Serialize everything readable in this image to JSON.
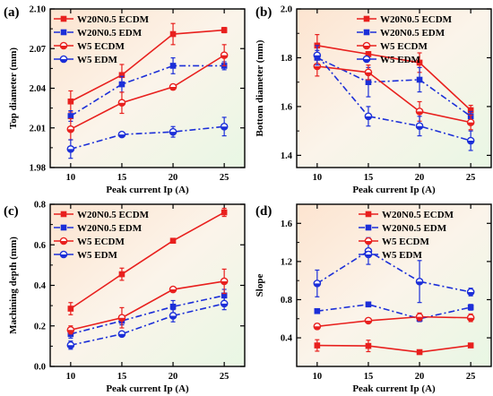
{
  "colors": {
    "red": "#e8201e",
    "blue": "#1c2fd8",
    "axis": "#000000",
    "bg_warm": "#fde4d0",
    "bg_cool": "#e8f7e4"
  },
  "chart_data": [
    {
      "type": "line",
      "panel": "(a)",
      "xlabel": "Peak current Ip (A)",
      "ylabel": "Top diameter (mm)",
      "x": [
        10,
        15,
        20,
        25
      ],
      "xticks": [
        "10",
        "15",
        "20",
        "25"
      ],
      "xlim": [
        8,
        27
      ],
      "ylim": [
        1.98,
        2.1
      ],
      "yticks": [
        "1.98",
        "2.01",
        "2.04",
        "2.07",
        "2.10"
      ],
      "legend_position": "top-left",
      "series": [
        {
          "name": "W20N0.5 ECDM",
          "values": [
            2.03,
            2.05,
            2.081,
            2.084
          ],
          "errors": [
            0.008,
            0.008,
            0.008,
            0.002
          ],
          "color": "red",
          "dash": "solid",
          "marker": "square"
        },
        {
          "name": "W20N0.5 EDM",
          "values": [
            2.019,
            2.043,
            2.057,
            2.057
          ],
          "errors": [
            0.004,
            0.006,
            0.006,
            0.003
          ],
          "color": "blue",
          "dash": "dashdot",
          "marker": "square"
        },
        {
          "name": "W5 ECDM",
          "values": [
            2.009,
            2.029,
            2.041,
            2.065
          ],
          "errors": [
            0.008,
            0.008,
            0.002,
            0.008
          ],
          "color": "red",
          "dash": "solid",
          "marker": "circle"
        },
        {
          "name": "W5 EDM",
          "values": [
            1.994,
            2.005,
            2.007,
            2.011
          ],
          "errors": [
            0.007,
            0.001,
            0.004,
            0.007
          ],
          "color": "blue",
          "dash": "dashdot",
          "marker": "circle"
        }
      ]
    },
    {
      "type": "line",
      "panel": "(b)",
      "xlabel": "Peak current Ip (A)",
      "ylabel": "Bottom diameter (mm)",
      "x": [
        10,
        15,
        20,
        25
      ],
      "xticks": [
        "10",
        "15",
        "20",
        "25"
      ],
      "xlim": [
        8,
        27
      ],
      "ylim": [
        1.35,
        2.0
      ],
      "yticks": [
        "1.4",
        "1.6",
        "1.8",
        "2.0"
      ],
      "legend_position": "top-right",
      "series": [
        {
          "name": "W20N0.5 ECDM",
          "values": [
            1.85,
            1.815,
            1.78,
            1.585
          ],
          "errors": [
            0.045,
            0.01,
            0.04,
            0.02
          ],
          "color": "red",
          "dash": "solid",
          "marker": "square"
        },
        {
          "name": "W20N0.5 EDM",
          "values": [
            1.8,
            1.7,
            1.71,
            1.56
          ],
          "errors": [
            0.03,
            0.06,
            0.05,
            0.02
          ],
          "color": "blue",
          "dash": "dashdot",
          "marker": "square"
        },
        {
          "name": "W5 ECDM",
          "values": [
            1.765,
            1.74,
            1.58,
            1.535
          ],
          "errors": [
            0.04,
            0.03,
            0.04,
            0.03
          ],
          "color": "red",
          "dash": "solid",
          "marker": "circle"
        },
        {
          "name": "W5 EDM",
          "values": [
            1.81,
            1.56,
            1.52,
            1.46
          ],
          "errors": [
            0.04,
            0.04,
            0.04,
            0.04
          ],
          "color": "blue",
          "dash": "dashdot",
          "marker": "circle"
        }
      ]
    },
    {
      "type": "line",
      "panel": "(c)",
      "xlabel": "Peak current Ip (A)",
      "ylabel": "Machining depth (mm)",
      "x": [
        10,
        15,
        20,
        25
      ],
      "xticks": [
        "10",
        "15",
        "20",
        "25"
      ],
      "xlim": [
        8,
        27
      ],
      "ylim": [
        0,
        0.8
      ],
      "yticks": [
        "0.0",
        "0.2",
        "0.4",
        "0.6",
        "0.8"
      ],
      "legend_position": "top-left",
      "series": [
        {
          "name": "W20N0.5 ECDM",
          "values": [
            0.285,
            0.455,
            0.62,
            0.76
          ],
          "errors": [
            0.03,
            0.03,
            0.01,
            0.02
          ],
          "color": "red",
          "dash": "solid",
          "marker": "square"
        },
        {
          "name": "W20N0.5 EDM",
          "values": [
            0.16,
            0.225,
            0.295,
            0.35
          ],
          "errors": [
            0.02,
            0.02,
            0.03,
            0.03
          ],
          "color": "blue",
          "dash": "dashdot",
          "marker": "square"
        },
        {
          "name": "W5 ECDM",
          "values": [
            0.18,
            0.24,
            0.38,
            0.42
          ],
          "errors": [
            0.02,
            0.05,
            0.01,
            0.06
          ],
          "color": "red",
          "dash": "solid",
          "marker": "circle"
        },
        {
          "name": "W5 EDM",
          "values": [
            0.105,
            0.16,
            0.25,
            0.31
          ],
          "errors": [
            0.02,
            0.01,
            0.03,
            0.03
          ],
          "color": "blue",
          "dash": "dashdot",
          "marker": "circle"
        }
      ]
    },
    {
      "type": "line",
      "panel": "(d)",
      "xlabel": "Peak current Ip (A)",
      "ylabel": "Slope",
      "x": [
        10,
        15,
        20,
        25
      ],
      "xticks": [
        "10",
        "15",
        "20",
        "25"
      ],
      "xlim": [
        8,
        27
      ],
      "ylim": [
        0.1,
        1.8
      ],
      "yticks": [
        "0.4",
        "0.8",
        "1.2",
        "1.6"
      ],
      "legend_position": "top-right",
      "series": [
        {
          "name": "W20N0.5 ECDM",
          "values": [
            0.32,
            0.315,
            0.25,
            0.32
          ],
          "errors": [
            0.06,
            0.06,
            0.01,
            0.01
          ],
          "color": "red",
          "dash": "solid",
          "marker": "square"
        },
        {
          "name": "W20N0.5 EDM",
          "values": [
            0.68,
            0.75,
            0.6,
            0.72
          ],
          "errors": [
            0.02,
            0.02,
            0.03,
            0.03
          ],
          "color": "blue",
          "dash": "dashdot",
          "marker": "square"
        },
        {
          "name": "W5 ECDM",
          "values": [
            0.52,
            0.58,
            0.62,
            0.61
          ],
          "errors": [
            0.03,
            0.02,
            0.04,
            0.04
          ],
          "color": "red",
          "dash": "solid",
          "marker": "circle"
        },
        {
          "name": "W5 EDM",
          "values": [
            0.97,
            1.31,
            0.99,
            0.88
          ],
          "errors": [
            0.14,
            0.14,
            0.22,
            0.04
          ],
          "color": "blue",
          "dash": "dashdot",
          "marker": "circle"
        }
      ]
    }
  ]
}
